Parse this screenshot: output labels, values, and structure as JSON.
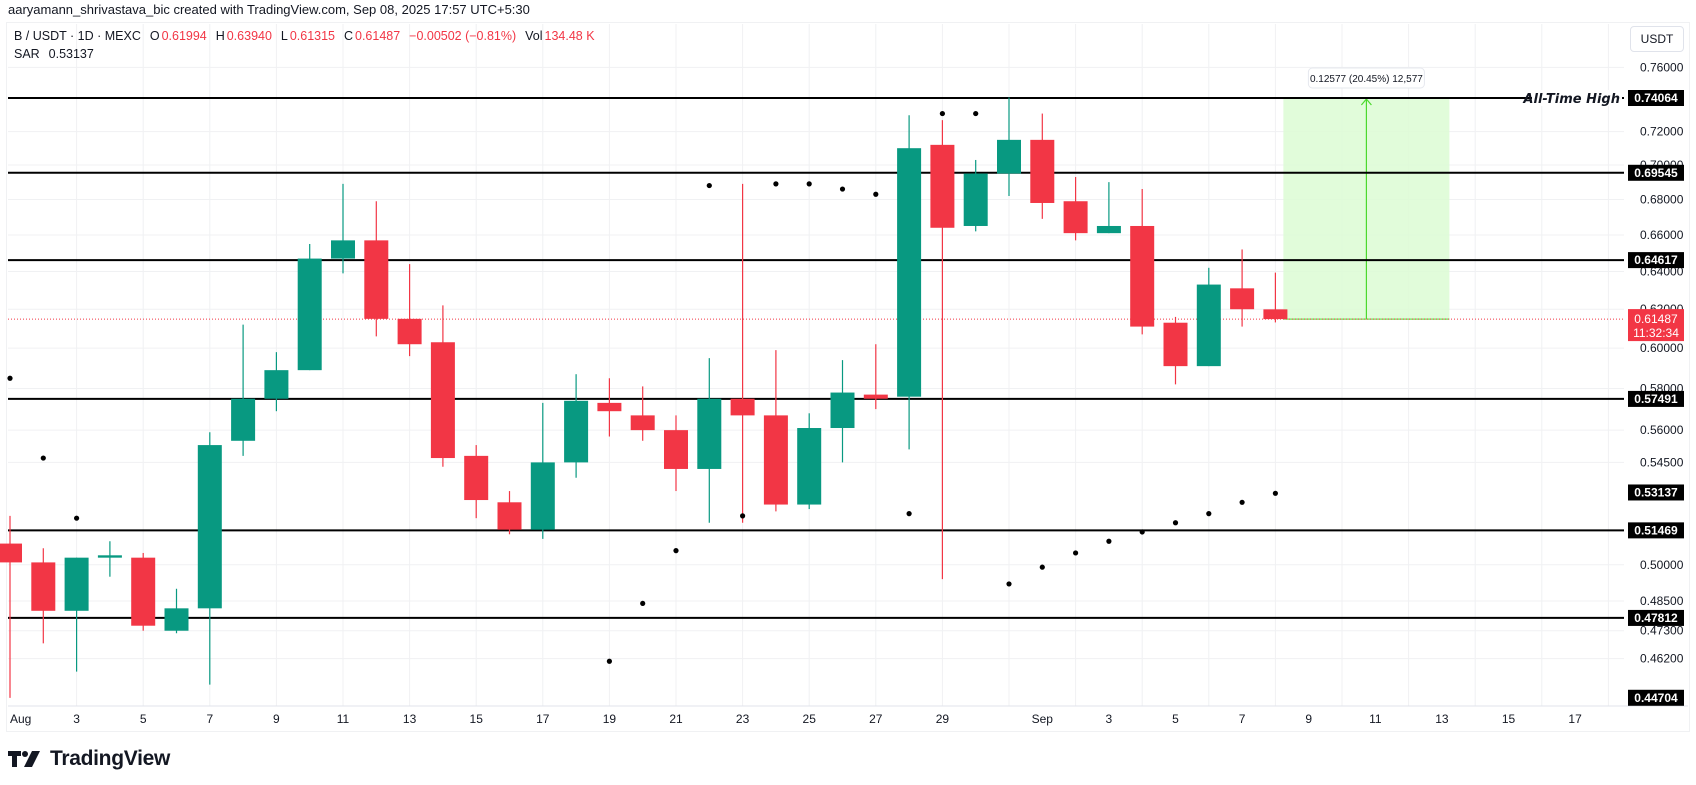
{
  "attribution": "aaryamann_shrivastava_bic created with TradingView.com, Sep 08, 2025 17:57 UTC+5:30",
  "legend": {
    "symbol": "B / USDT · 1D · MEXC",
    "open_label": "O",
    "open": "0.61994",
    "high_label": "H",
    "high": "0.63940",
    "low_label": "L",
    "low": "0.61315",
    "close_label": "C",
    "close": "0.61487",
    "change": "−0.00502 (−0.81%)",
    "vol_label": "Vol",
    "vol": "134.48 K",
    "indicator": "SAR",
    "indicator_value": "0.53137"
  },
  "price_axis": {
    "unit": "USDT",
    "current_price": "0.61487",
    "countdown": "11:32:34"
  },
  "measure_tooltip": "0.12577 (20.45%) 12,577",
  "ath_label": "All-Time High",
  "logo": "TradingView",
  "colors": {
    "up": "#089981",
    "down": "#f23645",
    "level": "#000000",
    "sar": "#000000",
    "measure_fill": "#dcfbd4",
    "measure_line": "#4cd92e"
  },
  "chart_data": {
    "type": "candlestick",
    "title": "B / USDT · 1D · MEXC",
    "xlabel": "",
    "ylabel": "USDT",
    "scale": "log",
    "ylim": [
      0.44,
      0.775
    ],
    "x_tick_labels": [
      "Aug",
      "3",
      "5",
      "7",
      "9",
      "11",
      "13",
      "15",
      "17",
      "19",
      "21",
      "23",
      "25",
      "27",
      "29",
      "Sep",
      "3",
      "5",
      "7",
      "9",
      "11",
      "13",
      "15",
      "17"
    ],
    "y_tick_labels": [
      "0.76000",
      "0.72000",
      "0.70000",
      "0.68000",
      "0.66000",
      "0.64000",
      "0.62000",
      "0.60000",
      "0.58000",
      "0.56000",
      "0.54500",
      "0.50000",
      "0.48500",
      "0.47300",
      "0.46200"
    ],
    "levels": [
      {
        "price": 0.74064,
        "label": "All-Time High"
      },
      {
        "price": 0.69545
      },
      {
        "price": 0.64617
      },
      {
        "price": 0.57491
      },
      {
        "price": 0.51469
      },
      {
        "price": 0.47812
      }
    ],
    "axis_tags": [
      "0.74064",
      "0.69545",
      "0.64617",
      "0.57491",
      "0.53137",
      "0.51469",
      "0.47812",
      "0.44704"
    ],
    "candles": [
      {
        "d": "Aug 1",
        "o": 0.509,
        "h": 0.521,
        "l": 0.447,
        "c": 0.501
      },
      {
        "d": "Aug 2",
        "o": 0.501,
        "h": 0.507,
        "l": 0.468,
        "c": 0.481
      },
      {
        "d": "Aug 3",
        "o": 0.481,
        "h": 0.503,
        "l": 0.457,
        "c": 0.503
      },
      {
        "d": "Aug 4",
        "o": 0.503,
        "h": 0.51,
        "l": 0.495,
        "c": 0.504
      },
      {
        "d": "Aug 5",
        "o": 0.503,
        "h": 0.505,
        "l": 0.473,
        "c": 0.475
      },
      {
        "d": "Aug 6",
        "o": 0.473,
        "h": 0.49,
        "l": 0.472,
        "c": 0.482
      },
      {
        "d": "Aug 7",
        "o": 0.482,
        "h": 0.559,
        "l": 0.452,
        "c": 0.553
      },
      {
        "d": "Aug 8",
        "o": 0.555,
        "h": 0.612,
        "l": 0.548,
        "c": 0.575
      },
      {
        "d": "Aug 9",
        "o": 0.575,
        "h": 0.598,
        "l": 0.569,
        "c": 0.589
      },
      {
        "d": "Aug 10",
        "o": 0.589,
        "h": 0.655,
        "l": 0.589,
        "c": 0.647
      },
      {
        "d": "Aug 11",
        "o": 0.647,
        "h": 0.689,
        "l": 0.639,
        "c": 0.657
      },
      {
        "d": "Aug 12",
        "o": 0.657,
        "h": 0.679,
        "l": 0.606,
        "c": 0.615
      },
      {
        "d": "Aug 13",
        "o": 0.615,
        "h": 0.644,
        "l": 0.596,
        "c": 0.602
      },
      {
        "d": "Aug 14",
        "o": 0.603,
        "h": 0.622,
        "l": 0.543,
        "c": 0.547
      },
      {
        "d": "Aug 15",
        "o": 0.548,
        "h": 0.553,
        "l": 0.52,
        "c": 0.528
      },
      {
        "d": "Aug 16",
        "o": 0.527,
        "h": 0.532,
        "l": 0.513,
        "c": 0.515
      },
      {
        "d": "Aug 17",
        "o": 0.515,
        "h": 0.573,
        "l": 0.511,
        "c": 0.545
      },
      {
        "d": "Aug 18",
        "o": 0.545,
        "h": 0.587,
        "l": 0.538,
        "c": 0.574
      },
      {
        "d": "Aug 19",
        "o": 0.573,
        "h": 0.585,
        "l": 0.557,
        "c": 0.569
      },
      {
        "d": "Aug 20",
        "o": 0.567,
        "h": 0.581,
        "l": 0.555,
        "c": 0.56
      },
      {
        "d": "Aug 21",
        "o": 0.56,
        "h": 0.567,
        "l": 0.532,
        "c": 0.542
      },
      {
        "d": "Aug 22",
        "o": 0.542,
        "h": 0.595,
        "l": 0.518,
        "c": 0.575
      },
      {
        "d": "Aug 23",
        "o": 0.575,
        "h": 0.689,
        "l": 0.518,
        "c": 0.567
      },
      {
        "d": "Aug 24",
        "o": 0.567,
        "h": 0.599,
        "l": 0.523,
        "c": 0.526
      },
      {
        "d": "Aug 25",
        "o": 0.526,
        "h": 0.568,
        "l": 0.524,
        "c": 0.561
      },
      {
        "d": "Aug 26",
        "o": 0.561,
        "h": 0.594,
        "l": 0.545,
        "c": 0.578
      },
      {
        "d": "Aug 27",
        "o": 0.577,
        "h": 0.602,
        "l": 0.57,
        "c": 0.575
      },
      {
        "d": "Aug 28",
        "o": 0.576,
        "h": 0.73,
        "l": 0.551,
        "c": 0.71
      },
      {
        "d": "Aug 29",
        "o": 0.712,
        "h": 0.727,
        "l": 0.494,
        "c": 0.664
      },
      {
        "d": "Aug 30",
        "o": 0.665,
        "h": 0.703,
        "l": 0.662,
        "c": 0.695
      },
      {
        "d": "Aug 31",
        "o": 0.695,
        "h": 0.741,
        "l": 0.682,
        "c": 0.715
      },
      {
        "d": "Sep 1",
        "o": 0.715,
        "h": 0.731,
        "l": 0.669,
        "c": 0.678
      },
      {
        "d": "Sep 2",
        "o": 0.679,
        "h": 0.693,
        "l": 0.657,
        "c": 0.661
      },
      {
        "d": "Sep 3",
        "o": 0.661,
        "h": 0.69,
        "l": 0.661,
        "c": 0.665
      },
      {
        "d": "Sep 4",
        "o": 0.665,
        "h": 0.686,
        "l": 0.607,
        "c": 0.611
      },
      {
        "d": "Sep 5",
        "o": 0.613,
        "h": 0.616,
        "l": 0.582,
        "c": 0.591
      },
      {
        "d": "Sep 6",
        "o": 0.591,
        "h": 0.642,
        "l": 0.591,
        "c": 0.633
      },
      {
        "d": "Sep 7",
        "o": 0.631,
        "h": 0.652,
        "l": 0.611,
        "c": 0.62
      },
      {
        "d": "Sep 8",
        "o": 0.61994,
        "h": 0.6394,
        "l": 0.61315,
        "c": 0.61487
      }
    ],
    "sar": [
      {
        "i": 0,
        "v": 0.585
      },
      {
        "i": 1,
        "v": 0.547
      },
      {
        "i": 2,
        "v": 0.52
      },
      {
        "i": 18,
        "v": 0.461
      },
      {
        "i": 19,
        "v": 0.484
      },
      {
        "i": 20,
        "v": 0.506
      },
      {
        "i": 21,
        "v": 0.688
      },
      {
        "i": 22,
        "v": 0.521
      },
      {
        "i": 23,
        "v": 0.689
      },
      {
        "i": 24,
        "v": 0.689
      },
      {
        "i": 25,
        "v": 0.686
      },
      {
        "i": 26,
        "v": 0.683
      },
      {
        "i": 27,
        "v": 0.522
      },
      {
        "i": 28,
        "v": 0.731
      },
      {
        "i": 29,
        "v": 0.731
      },
      {
        "i": 30,
        "v": 0.492
      },
      {
        "i": 31,
        "v": 0.499
      },
      {
        "i": 32,
        "v": 0.505
      },
      {
        "i": 33,
        "v": 0.51
      },
      {
        "i": 34,
        "v": 0.514
      },
      {
        "i": 35,
        "v": 0.518
      },
      {
        "i": 36,
        "v": 0.522
      },
      {
        "i": 37,
        "v": 0.527
      },
      {
        "i": 38,
        "v": 0.531
      }
    ],
    "measure": {
      "from": 0.61487,
      "to": 0.74064,
      "diff": 0.12577,
      "pct": 20.45,
      "ticks": 12577
    }
  }
}
